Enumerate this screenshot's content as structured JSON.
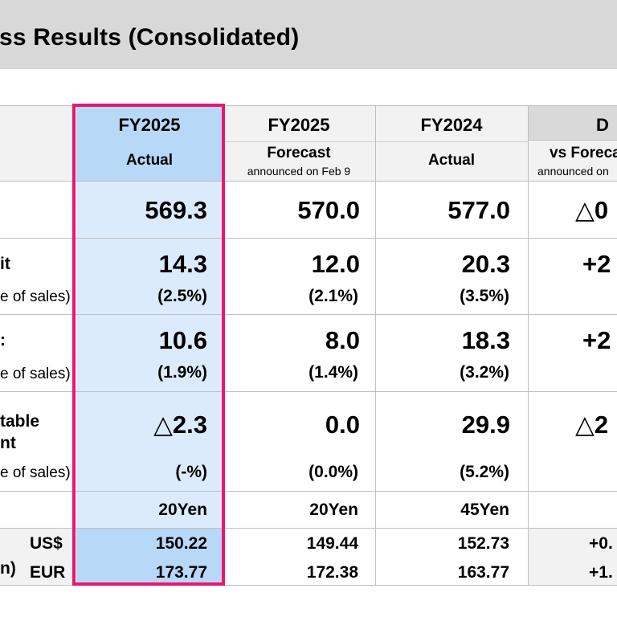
{
  "title": "ss Results (Consolidated)",
  "columns": [
    {
      "top": "FY2025",
      "bottom": "Actual",
      "note": ""
    },
    {
      "top": "FY2025",
      "bottom": "Forecast",
      "note": "announced on Feb 9"
    },
    {
      "top": "FY2024",
      "bottom": "Actual",
      "note": ""
    },
    {
      "top": "D",
      "bottom": "vs Foreca",
      "note": "announced on"
    }
  ],
  "rows": {
    "sales": {
      "values": [
        "569.3",
        "570.0",
        "577.0",
        "△0"
      ]
    },
    "op": {
      "label": "it",
      "sub": "e of sales)",
      "values": [
        "14.3",
        "12.0",
        "20.3",
        "+2"
      ],
      "pct": [
        "(2.5%)",
        "(2.1%)",
        "(3.5%)"
      ]
    },
    "ord": {
      "label": ":",
      "sub": "e of sales)",
      "values": [
        "10.6",
        "8.0",
        "18.3",
        "+2"
      ],
      "pct": [
        "(1.9%)",
        "(1.4%)",
        "(3.2%)"
      ]
    },
    "net": {
      "label1": "table",
      "label2": "nt",
      "sub": "e of sales)",
      "values": [
        "△2.3",
        "0.0",
        "29.9",
        "△2"
      ],
      "pct": [
        "(-%)",
        "(0.0%)",
        "(5.2%)"
      ]
    },
    "dividend": {
      "values": [
        "20Yen",
        "20Yen",
        "45Yen"
      ]
    },
    "fx": {
      "label": "n)",
      "usd_label": "US$",
      "eur_label": "EUR",
      "usd": [
        "150.22",
        "149.44",
        "152.73",
        "+0."
      ],
      "eur": [
        "173.77",
        "172.38",
        "163.77",
        "+1."
      ]
    }
  }
}
